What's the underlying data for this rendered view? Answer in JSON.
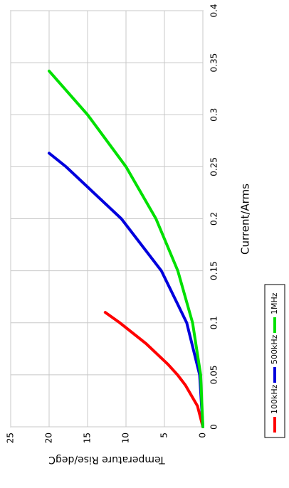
{
  "chart_data": {
    "type": "line",
    "xlabel": "Current/Arms",
    "ylabel": "Temperature Rise/degC",
    "xlim": [
      0,
      0.4
    ],
    "xticks": [
      0,
      0.05,
      0.1,
      0.15,
      0.2,
      0.25,
      0.3,
      0.35,
      0.4
    ],
    "ylim": [
      0,
      25
    ],
    "yticks": [
      0,
      5,
      10,
      15,
      20,
      25
    ],
    "grid": true,
    "series": [
      {
        "name": "100kHz",
        "color": "#ff0000",
        "x": [
          0,
          0.02,
          0.04,
          0.05,
          0.06,
          0.08,
          0.1,
          0.11
        ],
        "values": [
          0,
          0.7,
          2.27,
          3.3,
          4.53,
          7.39,
          10.8,
          12.7
        ]
      },
      {
        "name": "500kHz",
        "color": "#0000dd",
        "x": [
          0,
          0.05,
          0.1,
          0.15,
          0.2,
          0.25,
          0.263
        ],
        "values": [
          0,
          0.42,
          2.1,
          5.4,
          10.6,
          17.8,
          20
        ]
      },
      {
        "name": "1MHz",
        "color": "#00e000",
        "x": [
          0,
          0.05,
          0.1,
          0.15,
          0.2,
          0.25,
          0.3,
          0.342
        ],
        "values": [
          0,
          0.29,
          1.34,
          3.26,
          6.1,
          10.0,
          15.0,
          20
        ]
      }
    ]
  }
}
